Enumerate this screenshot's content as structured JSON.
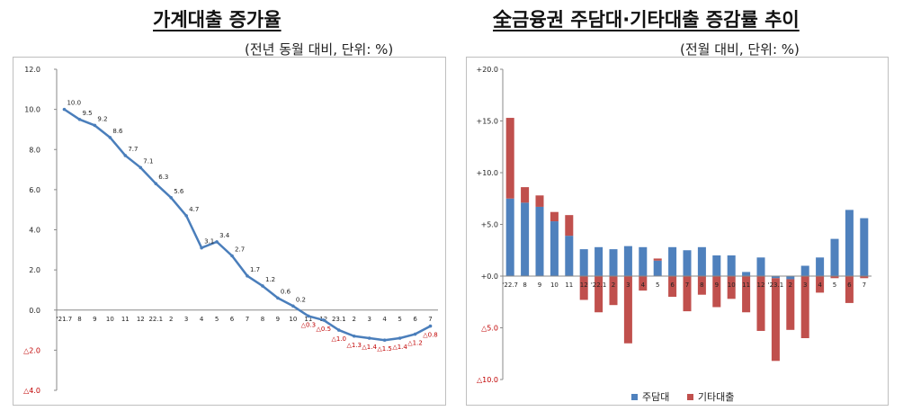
{
  "colors": {
    "line": "#4a7ebb",
    "loan_bar": "#4f81bd",
    "other_bar": "#c0504d",
    "neg_label": "#c00000",
    "axis_text": "#222222"
  },
  "chart_data": [
    {
      "type": "line",
      "title": "가계대출 증가율",
      "unit_note": "(전년 동월 대비, 단위: %)",
      "ylim": [
        -4.0,
        12.0
      ],
      "yticks": [
        {
          "value": 12,
          "label": "12.0"
        },
        {
          "value": 10,
          "label": "10.0"
        },
        {
          "value": 8,
          "label": "8.0"
        },
        {
          "value": 6,
          "label": "6.0"
        },
        {
          "value": 4,
          "label": "4.0"
        },
        {
          "value": 2,
          "label": "2.0"
        },
        {
          "value": 0,
          "label": "0.0"
        },
        {
          "value": -2,
          "label": "△2.0"
        },
        {
          "value": -4,
          "label": "△4.0"
        }
      ],
      "categories": [
        "'21.7",
        "8",
        "9",
        "10",
        "11",
        "12",
        "22.1",
        "2",
        "3",
        "4",
        "5",
        "6",
        "7",
        "8",
        "9",
        "10",
        "11",
        "12",
        "23.1",
        "2",
        "3",
        "4",
        "5",
        "6",
        "7"
      ],
      "series": [
        {
          "name": "가계대출 증가율",
          "values": [
            10.0,
            9.5,
            9.2,
            8.6,
            7.7,
            7.1,
            6.3,
            5.6,
            4.7,
            3.1,
            3.4,
            2.7,
            1.7,
            1.2,
            0.6,
            0.2,
            -0.3,
            -0.5,
            -1.0,
            -1.3,
            -1.4,
            -1.5,
            -1.4,
            -1.2,
            -0.8
          ],
          "labels": [
            "10.0",
            "9.5",
            "9.2",
            "8.6",
            "7.7",
            "7.1",
            "6.3",
            "5.6",
            "4.7",
            "3.1",
            "3.4",
            "2.7",
            "1.7",
            "1.2",
            "0.6",
            "0.2",
            "△0.3",
            "△0.5",
            "△1.0",
            "△1.3",
            "△1.4",
            "△1.5",
            "△1.4",
            "△1.2",
            "△0.8"
          ]
        }
      ]
    },
    {
      "type": "bar",
      "stacked": true,
      "title": "全금융권 주담대·기타대출 증감률 추이",
      "unit_note": "(전월 대비, 단위: %)",
      "ylim": [
        -10.0,
        20.0
      ],
      "yticks": [
        {
          "value": 20,
          "label": "+20.0"
        },
        {
          "value": 15,
          "label": "+15.0"
        },
        {
          "value": 10,
          "label": "+10.0"
        },
        {
          "value": 5,
          "label": "+5.0"
        },
        {
          "value": 0,
          "label": "+0.0"
        },
        {
          "value": -5,
          "label": "△5.0"
        },
        {
          "value": -10,
          "label": "△10.0"
        }
      ],
      "categories": [
        "'22.7",
        "8",
        "9",
        "10",
        "11",
        "12",
        "'22.1",
        "2",
        "3",
        "4",
        "5",
        "6",
        "7",
        "8",
        "9",
        "10",
        "11",
        "12",
        "'23.1",
        "2",
        "3",
        "4",
        "5",
        "6",
        "7"
      ],
      "series": [
        {
          "name": "주담대",
          "values": [
            7.5,
            7.1,
            6.7,
            5.3,
            3.9,
            2.6,
            2.8,
            2.6,
            2.9,
            2.8,
            1.5,
            2.8,
            2.5,
            2.8,
            2.0,
            2.0,
            0.4,
            1.8,
            -0.2,
            -0.3,
            1.0,
            1.8,
            3.6,
            6.4,
            5.6
          ]
        },
        {
          "name": "기타대출",
          "values": [
            7.8,
            1.5,
            1.1,
            0.9,
            2.0,
            -2.3,
            -3.5,
            -2.8,
            -6.5,
            -1.4,
            0.2,
            -2.0,
            -3.4,
            -1.8,
            -3.0,
            -2.2,
            -3.5,
            -5.3,
            -8.0,
            -4.9,
            -6.0,
            -1.6,
            -0.2,
            -2.6,
            -0.2
          ]
        }
      ],
      "legend": [
        "주담대",
        "기타대출"
      ]
    }
  ]
}
